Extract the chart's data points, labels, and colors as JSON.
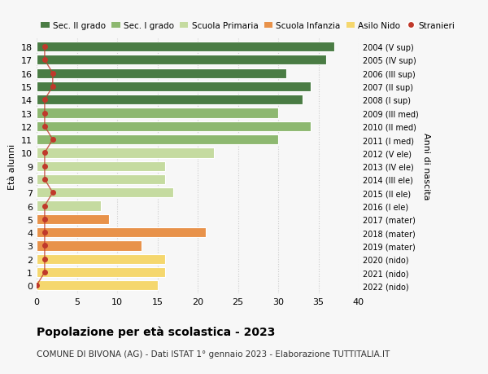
{
  "ages": [
    0,
    1,
    2,
    3,
    4,
    5,
    6,
    7,
    8,
    9,
    10,
    11,
    12,
    13,
    14,
    15,
    16,
    17,
    18
  ],
  "bar_values": [
    15,
    16,
    16,
    13,
    21,
    9,
    8,
    17,
    16,
    16,
    22,
    30,
    34,
    30,
    33,
    34,
    31,
    36,
    37
  ],
  "bar_colors": [
    "#f5d76e",
    "#f5d76e",
    "#f5d76e",
    "#e8924a",
    "#e8924a",
    "#e8924a",
    "#c5dba0",
    "#c5dba0",
    "#c5dba0",
    "#c5dba0",
    "#c5dba0",
    "#8db870",
    "#8db870",
    "#8db870",
    "#4a7c44",
    "#4a7c44",
    "#4a7c44",
    "#4a7c44",
    "#4a7c44"
  ],
  "stranieri_values": [
    0,
    1,
    1,
    1,
    1,
    1,
    1,
    2,
    1,
    1,
    1,
    2,
    1,
    1,
    1,
    2,
    2,
    1,
    1
  ],
  "right_labels": [
    "2022 (nido)",
    "2021 (nido)",
    "2020 (nido)",
    "2019 (mater)",
    "2018 (mater)",
    "2017 (mater)",
    "2016 (I ele)",
    "2015 (II ele)",
    "2014 (III ele)",
    "2013 (IV ele)",
    "2012 (V ele)",
    "2011 (I med)",
    "2010 (II med)",
    "2009 (III med)",
    "2008 (I sup)",
    "2007 (II sup)",
    "2006 (III sup)",
    "2005 (IV sup)",
    "2004 (V sup)"
  ],
  "legend_labels": [
    "Sec. II grado",
    "Sec. I grado",
    "Scuola Primaria",
    "Scuola Infanzia",
    "Asilo Nido",
    "Stranieri"
  ],
  "legend_colors": [
    "#4a7c44",
    "#8db870",
    "#c5dba0",
    "#e8924a",
    "#f5d76e",
    "#c0392b"
  ],
  "ylabel": "Età alunni",
  "right_ylabel": "Anni di nascita",
  "title": "Popolazione per età scolastica - 2023",
  "subtitle": "COMUNE DI BIVONA (AG) - Dati ISTAT 1° gennaio 2023 - Elaborazione TUTTITALIA.IT",
  "xlim": [
    0,
    40
  ],
  "xticks": [
    0,
    5,
    10,
    15,
    20,
    25,
    30,
    35,
    40
  ],
  "bar_height": 0.75,
  "bg_color": "#f7f7f7",
  "grid_color": "#cccccc",
  "stranieri_color": "#c0392b"
}
